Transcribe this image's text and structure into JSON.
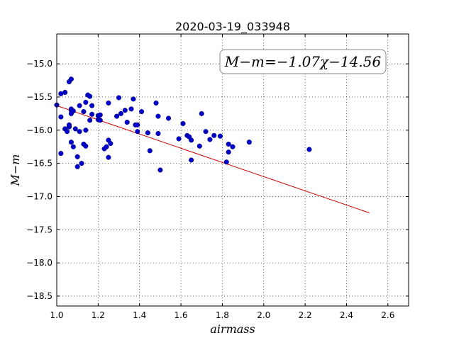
{
  "chart_data": {
    "type": "scatter",
    "title": "2020-03-19_033948",
    "xlabel": "airmass",
    "ylabel": "M−m",
    "xlim": [
      1.0,
      2.7
    ],
    "ylim": [
      -18.65,
      -14.55
    ],
    "y_inverted": true,
    "xticks": [
      "1.0",
      "1.2",
      "1.4",
      "1.6",
      "1.8",
      "2.0",
      "2.2",
      "2.4",
      "2.6"
    ],
    "yticks": [
      "−15.0",
      "−15.5",
      "−16.0",
      "−16.5",
      "−17.0",
      "−17.5",
      "−18.0",
      "−18.5"
    ],
    "grid": true,
    "annotation": "M−m=−1.07χ−14.56",
    "annotation_placement": "top-right",
    "point_color": "#0000cc",
    "fit_color": "#cc0000",
    "fit": {
      "slope": -1.07,
      "intercept": -14.56,
      "x_range": [
        1.0,
        2.51
      ]
    },
    "points": [
      [
        1.0,
        -15.62
      ],
      [
        1.02,
        -15.45
      ],
      [
        1.02,
        -15.8
      ],
      [
        1.02,
        -16.35
      ],
      [
        1.04,
        -15.43
      ],
      [
        1.04,
        -15.98
      ],
      [
        1.05,
        -16.02
      ],
      [
        1.06,
        -15.95
      ],
      [
        1.06,
        -15.92
      ],
      [
        1.06,
        -15.27
      ],
      [
        1.07,
        -15.23
      ],
      [
        1.07,
        -15.7
      ],
      [
        1.07,
        -15.68
      ],
      [
        1.07,
        -15.75
      ],
      [
        1.08,
        -15.71
      ],
      [
        1.07,
        -16.18
      ],
      [
        1.08,
        -16.25
      ],
      [
        1.09,
        -15.98
      ],
      [
        1.1,
        -16.55
      ],
      [
        1.1,
        -16.4
      ],
      [
        1.11,
        -15.63
      ],
      [
        1.11,
        -16.02
      ],
      [
        1.12,
        -16.5
      ],
      [
        1.13,
        -15.72
      ],
      [
        1.13,
        -16.21
      ],
      [
        1.14,
        -15.58
      ],
      [
        1.14,
        -16.24
      ],
      [
        1.15,
        -15.47
      ],
      [
        1.16,
        -15.49
      ],
      [
        1.16,
        -15.85
      ],
      [
        1.17,
        -15.63
      ],
      [
        1.17,
        -15.76
      ],
      [
        1.14,
        -16.0
      ],
      [
        1.2,
        -15.78
      ],
      [
        1.2,
        -15.84
      ],
      [
        1.21,
        -15.77
      ],
      [
        1.21,
        -15.85
      ],
      [
        1.23,
        -16.28
      ],
      [
        1.24,
        -16.25
      ],
      [
        1.25,
        -15.59
      ],
      [
        1.25,
        -16.41
      ],
      [
        1.25,
        -16.15
      ],
      [
        1.26,
        -16.2
      ],
      [
        1.29,
        -15.79
      ],
      [
        1.3,
        -15.51
      ],
      [
        1.31,
        -15.75
      ],
      [
        1.33,
        -15.7
      ],
      [
        1.34,
        -15.88
      ],
      [
        1.36,
        -15.68
      ],
      [
        1.37,
        -15.53
      ],
      [
        1.38,
        -15.92
      ],
      [
        1.39,
        -16.02
      ],
      [
        1.39,
        -15.92
      ],
      [
        1.41,
        -15.72
      ],
      [
        1.44,
        -16.04
      ],
      [
        1.45,
        -16.31
      ],
      [
        1.48,
        -15.59
      ],
      [
        1.49,
        -15.79
      ],
      [
        1.49,
        -16.05
      ],
      [
        1.5,
        -16.6
      ],
      [
        1.54,
        -15.82
      ],
      [
        1.59,
        -16.13
      ],
      [
        1.61,
        -15.9
      ],
      [
        1.63,
        -16.08
      ],
      [
        1.64,
        -16.1
      ],
      [
        1.65,
        -16.15
      ],
      [
        1.65,
        -16.45
      ],
      [
        1.69,
        -16.24
      ],
      [
        1.7,
        -15.75
      ],
      [
        1.72,
        -16.02
      ],
      [
        1.74,
        -16.14
      ],
      [
        1.76,
        -16.08
      ],
      [
        1.79,
        -16.09
      ],
      [
        1.82,
        -16.48
      ],
      [
        1.83,
        -16.21
      ],
      [
        1.83,
        -16.33
      ],
      [
        1.85,
        -16.25
      ],
      [
        1.93,
        -16.18
      ],
      [
        2.22,
        -16.29
      ]
    ]
  }
}
